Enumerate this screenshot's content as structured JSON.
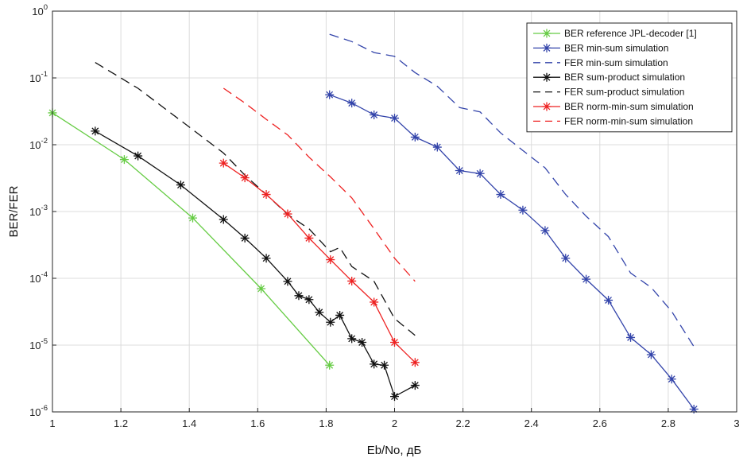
{
  "chart_data": {
    "type": "line",
    "title": "",
    "xlabel": "Eb/No, дБ",
    "ylabel": "BER/FER",
    "xlim": [
      1,
      3
    ],
    "ylim": [
      1e-06,
      1
    ],
    "yscale": "log",
    "grid": true,
    "legend_position": "top-right",
    "x_ticks": [
      "1",
      "1.2",
      "1.4",
      "1.6",
      "1.8",
      "2",
      "2.2",
      "2.4",
      "2.6",
      "2.8",
      "3"
    ],
    "y_ticks": [
      {
        "base": "10",
        "exp": "0"
      },
      {
        "base": "10",
        "exp": "-1"
      },
      {
        "base": "10",
        "exp": "-2"
      },
      {
        "base": "10",
        "exp": "-3"
      },
      {
        "base": "10",
        "exp": "-4"
      },
      {
        "base": "10",
        "exp": "-5"
      },
      {
        "base": "10",
        "exp": "-6"
      }
    ],
    "series": [
      {
        "name": "BER reference JPL-decoder [1]",
        "color": "#66cc44",
        "dash": "solid",
        "marker": "star",
        "x": [
          1.0,
          1.21,
          1.41,
          1.61,
          1.81
        ],
        "y": [
          0.03,
          0.006,
          0.0008,
          7e-05,
          5e-06
        ]
      },
      {
        "name": "BER min-sum simulation",
        "color": "#3344aa",
        "dash": "solid",
        "marker": "star",
        "x": [
          1.81,
          1.875,
          1.94,
          2.0,
          2.06,
          2.125,
          2.19,
          2.25,
          2.31,
          2.375,
          2.44,
          2.5,
          2.56,
          2.625,
          2.69,
          2.75,
          2.81,
          2.875
        ],
        "y": [
          0.056,
          0.042,
          0.028,
          0.025,
          0.013,
          0.0092,
          0.0041,
          0.0037,
          0.0018,
          0.00105,
          0.00052,
          0.0002,
          9.7e-05,
          4.7e-05,
          1.3e-05,
          7.2e-06,
          3.1e-06,
          1.1e-06
        ]
      },
      {
        "name": "FER min-sum simulation",
        "color": "#3344aa",
        "dash": "dashed",
        "marker": "none",
        "x": [
          1.81,
          1.875,
          1.94,
          2.0,
          2.06,
          2.125,
          2.19,
          2.25,
          2.31,
          2.375,
          2.44,
          2.5,
          2.56,
          2.625,
          2.69,
          2.75,
          2.81,
          2.875
        ],
        "y": [
          0.45,
          0.35,
          0.24,
          0.21,
          0.12,
          0.075,
          0.036,
          0.031,
          0.015,
          0.0082,
          0.0045,
          0.0018,
          0.00085,
          0.00042,
          0.00012,
          7.3e-05,
          3.2e-05,
          9.5e-06
        ]
      },
      {
        "name": "BER sum-product simulation",
        "color": "#111111",
        "dash": "solid",
        "marker": "star",
        "x": [
          1.125,
          1.25,
          1.375,
          1.5,
          1.5625,
          1.625,
          1.6875,
          1.72,
          1.75,
          1.78,
          1.8125,
          1.84,
          1.875,
          1.905,
          1.94,
          1.97,
          2.0,
          2.06
        ],
        "y": [
          0.016,
          0.0068,
          0.0025,
          0.00076,
          0.0004,
          0.0002,
          9e-05,
          5.5e-05,
          4.8e-05,
          3.1e-05,
          2.2e-05,
          2.8e-05,
          1.25e-05,
          1.1e-05,
          5.2e-06,
          5e-06,
          1.7e-06,
          2.5e-06
        ]
      },
      {
        "name": "FER sum-product simulation",
        "color": "#111111",
        "dash": "dashed",
        "marker": "none",
        "x": [
          1.125,
          1.25,
          1.375,
          1.5,
          1.5625,
          1.625,
          1.6875,
          1.75,
          1.8125,
          1.84,
          1.875,
          1.94,
          2.0,
          2.06
        ],
        "y": [
          0.17,
          0.07,
          0.023,
          0.0075,
          0.0035,
          0.0018,
          0.0009,
          0.00055,
          0.00025,
          0.00029,
          0.00015,
          9e-05,
          2.5e-05,
          1.4e-05
        ]
      },
      {
        "name": "BER norm-min-sum simulation",
        "color": "#ee2222",
        "dash": "solid",
        "marker": "star",
        "x": [
          1.5,
          1.5625,
          1.625,
          1.6875,
          1.75,
          1.8125,
          1.875,
          1.94,
          2.0,
          2.06
        ],
        "y": [
          0.0053,
          0.0032,
          0.0018,
          0.00092,
          0.0004,
          0.00019,
          9.1e-05,
          4.4e-05,
          1.1e-05,
          5.5e-06
        ]
      },
      {
        "name": "FER norm-min-sum simulation",
        "color": "#ee2222",
        "dash": "dashed",
        "marker": "none",
        "x": [
          1.5,
          1.5625,
          1.625,
          1.6875,
          1.75,
          1.8125,
          1.875,
          1.94,
          2.0,
          2.06
        ],
        "y": [
          0.07,
          0.042,
          0.024,
          0.014,
          0.0065,
          0.0033,
          0.0016,
          0.00055,
          0.0002,
          9e-05
        ]
      }
    ]
  }
}
